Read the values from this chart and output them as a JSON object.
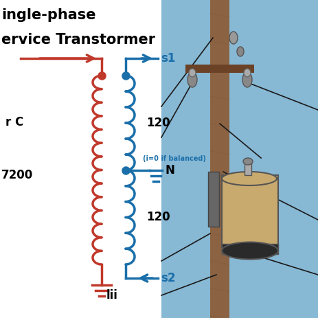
{
  "title_line1": "ingle-phase",
  "title_line2": "ervice Transtormer",
  "red_color": "#C0392B",
  "blue_color": "#1A6FAA",
  "black_color": "#000000",
  "white_color": "#FFFFFF",
  "label_rC": "r C",
  "label_7200": "7200",
  "label_lii": "lii",
  "label_s1": "s1",
  "label_s2": "s2",
  "label_N": "N",
  "label_120_top": "120",
  "label_120_bot": "120",
  "label_balanced": "(i=0 if balanced)",
  "sky_color": "#87B8D4",
  "pole_color": "#8B6343",
  "pole_dark": "#7A5230",
  "transformer_body": "#C8A96E",
  "transformer_dark": "#2A2A2A",
  "wire_color": "#1A1A1A",
  "title_fontsize": 15,
  "label_fontsize": 12
}
